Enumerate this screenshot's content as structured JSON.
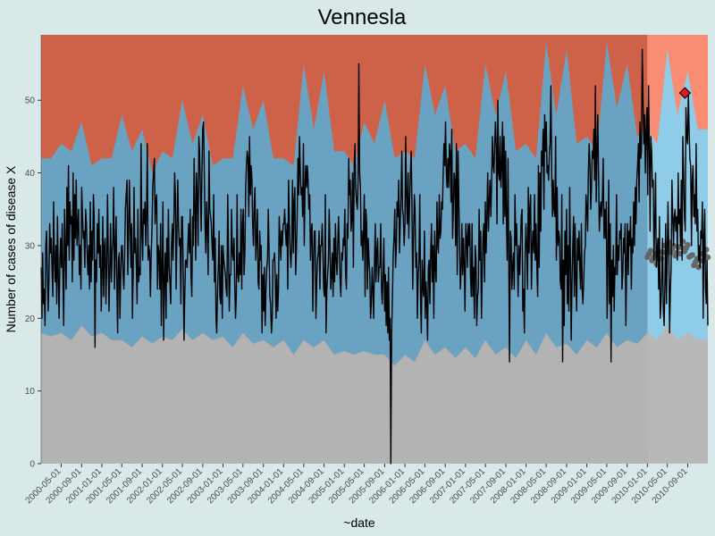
{
  "colors": {
    "background": "#d9e8e8",
    "region_low": "#b3b3b3",
    "region_normal": "#6aa2c2",
    "region_high": "#cd6249",
    "region_low_forecast": "#b8b8b8",
    "region_normal_forecast": "#8ecce8",
    "region_high_forecast": "#f98d73",
    "baseline_band": "#5592b4",
    "line": "#000000",
    "baseline_points": "#666666",
    "alert_marker": "#e0191b"
  },
  "chart_data": {
    "type": "line",
    "title": "Vennesla",
    "xlabel": "~date",
    "ylabel": "Number of cases of disease X",
    "x_range": [
      "2000-01-01",
      "2010-12-31"
    ],
    "ylim": [
      0,
      59
    ],
    "y_ticks": [
      0,
      10,
      20,
      30,
      40,
      50
    ],
    "grid": false,
    "forecast_start": "2010-01-01",
    "x_ticks": [
      "2000-05-01",
      "2000-09-01",
      "2001-01-01",
      "2001-05-01",
      "2001-09-01",
      "2002-01-01",
      "2002-05-01",
      "2002-09-01",
      "2003-01-01",
      "2003-05-01",
      "2003-09-01",
      "2004-01-01",
      "2004-05-01",
      "2004-09-01",
      "2005-01-01",
      "2005-05-01",
      "2005-09-01",
      "2006-01-01",
      "2006-05-01",
      "2006-09-01",
      "2007-01-01",
      "2007-05-01",
      "2007-09-01",
      "2008-01-01",
      "2008-05-01",
      "2008-09-01",
      "2009-01-01",
      "2009-05-01",
      "2009-09-01",
      "2010-01-01",
      "2010-05-01",
      "2010-09-01"
    ],
    "thresholds": {
      "x": [
        "2000-01-01",
        "2000-03-01",
        "2000-05-01",
        "2000-07-01",
        "2000-09-01",
        "2000-11-01",
        "2001-01-01",
        "2001-03-01",
        "2001-05-01",
        "2001-07-01",
        "2001-09-01",
        "2001-11-01",
        "2002-01-01",
        "2002-03-01",
        "2002-05-01",
        "2002-07-01",
        "2002-09-01",
        "2002-11-01",
        "2003-01-01",
        "2003-03-01",
        "2003-05-01",
        "2003-07-01",
        "2003-09-01",
        "2003-11-01",
        "2004-01-01",
        "2004-03-01",
        "2004-05-01",
        "2004-07-01",
        "2004-09-01",
        "2004-11-01",
        "2005-01-01",
        "2005-03-01",
        "2005-05-01",
        "2005-07-01",
        "2005-09-01",
        "2005-11-01",
        "2006-01-01",
        "2006-03-01",
        "2006-05-01",
        "2006-07-01",
        "2006-09-01",
        "2006-11-01",
        "2007-01-01",
        "2007-03-01",
        "2007-05-01",
        "2007-07-01",
        "2007-09-01",
        "2007-11-01",
        "2008-01-01",
        "2008-03-01",
        "2008-05-01",
        "2008-07-01",
        "2008-09-01",
        "2008-11-01",
        "2009-01-01",
        "2009-03-01",
        "2009-05-01",
        "2009-07-01",
        "2009-09-01",
        "2009-11-01",
        "2010-01-01",
        "2010-03-01",
        "2010-05-01",
        "2010-07-01",
        "2010-09-01",
        "2010-11-01",
        "2010-12-31"
      ],
      "lower": [
        18,
        17.5,
        18,
        17,
        19,
        17.5,
        18,
        17,
        17,
        16,
        17.5,
        16.5,
        17.5,
        17,
        18.5,
        17,
        18,
        17,
        17.5,
        16,
        18,
        16.5,
        17,
        16,
        17,
        15,
        17,
        16,
        17,
        15,
        15.5,
        15,
        15.5,
        15,
        15,
        13.5,
        15,
        14,
        17,
        15,
        16,
        14.5,
        16,
        14.5,
        17,
        15,
        16,
        14.5,
        17,
        15,
        18,
        16,
        16.5,
        15,
        17,
        16,
        18,
        16,
        17,
        16.5,
        18,
        17,
        19,
        17,
        18,
        17,
        17
      ],
      "upper": [
        42,
        42,
        44,
        43,
        47,
        41,
        42,
        42,
        48,
        43,
        46,
        40,
        43,
        42,
        50,
        44,
        48,
        41,
        42,
        42,
        52,
        46,
        50,
        42,
        42,
        41,
        55,
        46,
        54,
        43,
        43,
        41,
        47,
        44,
        50,
        42,
        43,
        42,
        55,
        48,
        52,
        43,
        44,
        42,
        55,
        48,
        54,
        43,
        44,
        42,
        58,
        48,
        57,
        44,
        45,
        43,
        58,
        49,
        55,
        45,
        46,
        44,
        57,
        48,
        54,
        46,
        46
      ]
    },
    "baseline": {
      "x": [
        "2010-01-01",
        "2010-02-01",
        "2010-03-01",
        "2010-04-01",
        "2010-05-01",
        "2010-06-01",
        "2010-07-01",
        "2010-08-01",
        "2010-09-01",
        "2010-10-01",
        "2010-11-01",
        "2010-12-01",
        "2010-12-31"
      ],
      "values": [
        29,
        28.5,
        28,
        29,
        30,
        29.5,
        29,
        30,
        29.5,
        28,
        27.5,
        28.5,
        29
      ]
    },
    "alert": {
      "x": "2010-08-15",
      "value": 51
    },
    "series": [
      {
        "values": [
          27,
          20,
          29,
          22,
          24,
          19,
          30,
          32,
          26,
          21,
          25,
          33,
          29,
          31,
          27,
          23,
          36,
          28,
          25,
          30,
          22,
          34,
          26,
          20,
          28,
          31,
          27,
          33,
          25,
          19,
          35,
          29,
          24,
          38,
          30,
          41,
          28,
          36,
          33,
          34,
          25,
          40,
          28,
          37,
          31,
          39,
          30,
          33,
          35,
          26,
          30,
          24,
          38,
          34,
          31,
          32,
          27,
          35,
          33,
          29,
          26,
          30,
          24,
          36,
          25,
          32,
          28,
          37,
          34,
          16,
          28,
          25,
          33,
          29,
          35,
          27,
          30,
          21,
          26,
          34,
          23,
          30,
          31,
          22,
          27,
          37,
          29,
          21,
          27,
          33,
          25,
          29,
          31,
          38,
          24,
          30,
          34,
          25,
          18,
          28,
          29,
          20,
          26,
          30,
          30,
          26,
          24,
          29,
          35,
          37,
          39,
          26,
          31,
          39,
          33,
          27,
          33,
          20,
          27,
          38,
          29,
          31,
          27,
          22,
          35,
          25,
          27,
          26,
          44,
          32,
          28,
          35,
          33,
          36,
          30,
          34,
          44,
          28,
          30,
          29,
          23,
          29,
          32,
          38,
          40,
          42,
          33,
          36,
          37,
          24,
          30,
          29,
          24,
          33,
          19,
          27,
          36,
          17,
          25,
          29,
          20,
          31,
          25,
          35,
          27,
          25,
          22,
          30,
          33,
          28,
          33,
          40,
          37,
          24,
          32,
          39,
          33,
          30,
          31,
          22,
          34,
          34,
          26,
          17,
          23,
          28,
          28,
          27,
          30,
          33,
          29,
          35,
          26,
          23,
          34,
          30,
          42,
          35,
          28,
          40,
          37,
          30,
          45,
          43,
          38,
          32,
          40,
          46,
          47,
          40,
          33,
          29,
          36,
          32,
          26,
          43,
          35,
          34,
          33,
          30,
          28,
          37,
          25,
          31,
          20,
          18,
          24,
          27,
          32,
          23,
          22,
          30,
          20,
          30,
          28,
          27,
          26,
          24,
          23,
          37,
          30,
          21,
          26,
          26,
          35,
          29,
          28,
          31,
          25,
          20,
          23,
          37,
          26,
          25,
          29,
          26,
          35,
          24,
          33,
          35,
          26,
          29,
          38,
          41,
          43,
          42,
          34,
          45,
          37,
          41,
          39,
          33,
          30,
          36,
          38,
          28,
          31,
          35,
          25,
          24,
          32,
          28,
          30,
          18,
          26,
          21,
          27,
          19,
          24,
          27,
          28,
          35,
          29,
          23,
          22,
          18,
          20,
          28,
          28,
          29,
          25,
          20,
          26,
          21,
          24,
          34,
          31,
          28,
          32,
          30,
          33,
          33,
          35,
          32,
          30,
          33,
          24,
          39,
          33,
          29,
          27,
          30,
          39,
          29,
          36,
          38,
          26,
          29,
          34,
          42,
          37,
          45,
          40,
          37,
          38,
          34,
          44,
          30,
          38,
          41,
          38,
          41,
          39,
          35,
          37,
          28,
          32,
          33,
          21,
          28,
          32,
          32,
          20,
          25,
          28,
          29,
          32,
          24,
          30,
          30,
          33,
          29,
          24,
          23,
          37,
          18,
          24,
          26,
          28,
          35,
          30,
          24,
          26,
          29,
          23,
          31,
          25,
          33,
          28,
          26,
          30,
          34,
          29,
          25,
          23,
          29,
          28,
          31,
          30,
          35,
          26,
          24,
          33,
          31,
          42,
          37,
          39,
          32,
          34,
          40,
          27,
          41,
          44,
          38,
          36,
          35,
          39,
          55,
          40,
          38,
          30,
          32,
          28,
          32,
          37,
          23,
          35,
          33,
          24,
          31,
          28,
          26,
          20,
          22,
          27,
          24,
          20,
          28,
          33,
          25,
          29,
          31,
          25,
          27,
          27,
          33,
          24,
          22,
          26,
          31,
          21,
          26,
          19,
          25,
          18,
          27,
          17,
          20,
          0,
          18,
          23,
          29,
          31,
          35,
          27,
          30,
          36,
          34,
          39,
          29,
          33,
          37,
          43,
          35,
          34,
          30,
          33,
          45,
          37,
          33,
          40,
          31,
          36,
          40,
          43,
          36,
          24,
          31,
          37,
          35,
          27,
          29,
          20,
          26,
          28,
          37,
          23,
          18,
          28,
          24,
          23,
          32,
          20,
          25,
          22,
          17,
          27,
          28,
          22,
          29,
          33,
          25,
          30,
          20,
          32,
          27,
          25,
          36,
          30,
          29,
          37,
          31,
          32,
          36,
          35,
          40,
          44,
          41,
          47,
          40,
          38,
          42,
          38,
          44,
          43,
          36,
          46,
          31,
          35,
          40,
          39,
          30,
          44,
          26,
          43,
          37,
          30,
          24,
          27,
          33,
          26,
          31,
          27,
          21,
          33,
          31,
          27,
          33,
          30,
          33,
          26,
          23,
          33,
          23,
          27,
          20,
          30,
          28,
          19,
          23,
          24,
          35,
          28,
          32,
          20,
          26,
          31,
          33,
          25,
          36,
          29,
          34,
          40,
          32,
          36,
          39,
          34,
          38,
          45,
          41,
          40,
          44,
          47,
          43,
          33,
          50,
          40,
          39,
          45,
          38,
          41,
          47,
          33,
          45,
          34,
          43,
          34,
          28,
          42,
          29,
          14,
          32,
          31,
          24,
          27,
          29,
          24,
          37,
          30,
          33,
          28,
          23,
          30,
          26,
          30,
          34,
          35,
          21,
          24,
          18,
          29,
          33,
          30,
          24,
          38,
          29,
          35,
          37,
          24,
          30,
          32,
          29,
          37,
          28,
          33,
          27,
          23,
          41,
          27,
          40,
          32,
          43,
          41,
          46,
          35,
          48,
          43,
          47,
          40,
          41,
          39,
          43,
          44,
          52,
          40,
          34,
          39,
          35,
          34,
          45,
          28,
          38,
          30,
          32,
          31,
          25,
          24,
          37,
          14,
          28,
          19,
          32,
          26,
          35,
          22,
          30,
          21,
          38,
          28,
          17,
          25,
          30,
          34,
          23,
          33,
          25,
          21,
          31,
          28,
          32,
          27,
          24,
          33,
          24,
          22,
          25,
          29,
          30,
          37,
          35,
          32,
          40,
          44,
          41,
          35,
          38,
          43,
          42,
          46,
          39,
          52,
          36,
          43,
          48,
          40,
          32,
          35,
          36,
          34,
          37,
          42,
          31,
          35,
          31,
          36,
          20,
          28,
          39,
          22,
          33,
          14,
          28,
          23,
          30,
          21,
          27,
          26,
          37,
          26,
          30,
          28,
          32,
          31,
          33,
          24,
          26,
          31,
          29,
          33,
          19,
          28,
          33,
          26,
          32,
          30,
          34,
          24,
          31,
          29,
          36,
          30,
          38,
          33,
          39,
          41,
          44,
          36,
          47,
          42,
          43,
          57,
          50,
          44,
          48,
          40,
          46,
          49,
          37,
          52,
          44,
          32,
          45,
          43,
          38,
          39,
          28,
          33,
          40,
          27,
          29,
          31,
          24,
          34,
          20,
          22,
          26,
          31,
          21,
          19,
          25,
          33,
          22,
          29,
          36,
          30,
          18,
          24,
          27,
          39,
          34,
          30,
          34,
          35,
          32,
          34,
          28,
          40,
          33,
          35,
          30,
          39,
          28,
          45,
          40,
          34,
          32,
          49,
          45,
          44,
          51,
          46,
          42,
          41,
          30,
          39,
          41,
          34,
          37,
          33,
          44,
          32,
          35,
          28,
          30,
          27,
          32,
          31,
          36,
          20,
          31,
          35,
          24,
          22,
          28,
          19
        ]
      }
    ]
  }
}
